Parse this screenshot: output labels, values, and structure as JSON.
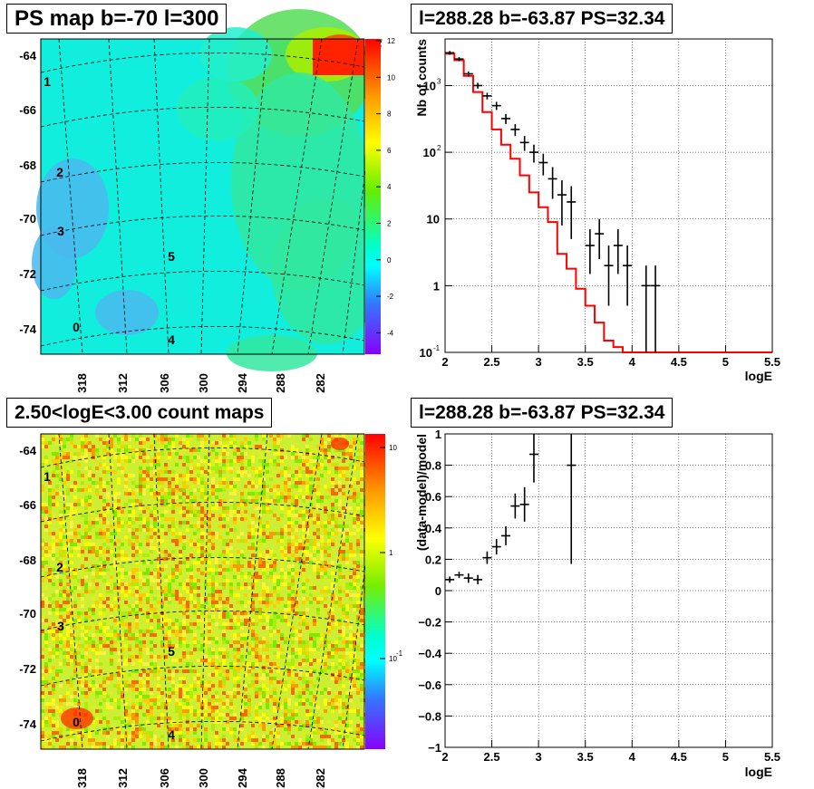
{
  "panels": {
    "tl_title": "PS map b=-70 l=300",
    "tr_title": "l=288.28 b=-63.87 PS=32.34",
    "bl_title": "2.50<logE<3.00 count maps",
    "br_title": "l=288.28 b=-63.87 PS=32.34"
  },
  "maps": {
    "lat_labels": [
      "-64",
      "-66",
      "-68",
      "-70",
      "-72",
      "-74"
    ],
    "lon_labels": [
      "318",
      "312",
      "306",
      "300",
      "294",
      "288",
      "282"
    ],
    "source_labels": [
      "1",
      "2",
      "3",
      "5",
      "0",
      "4"
    ],
    "ps_colorbar_ticks": [
      "12",
      "10",
      "8",
      "6",
      "4",
      "2",
      "0",
      "-2",
      "-4"
    ],
    "count_colorbar_ticks": [
      "10",
      "1",
      "10"
    ],
    "count_colorbar_exp": [
      "-1"
    ]
  },
  "chart_data": [
    {
      "type": "line",
      "title": "l=288.28 b=-63.87 PS=32.34",
      "xlabel": "logE",
      "ylabel": "Nb of counts",
      "xlim": [
        2,
        5.5
      ],
      "ylim": [
        0.1,
        5000
      ],
      "yscale": "log",
      "grid": true,
      "x_ticks": [
        "2",
        "2.5",
        "3",
        "3.5",
        "4",
        "4.5",
        "5",
        "5.5"
      ],
      "y_ticks": [
        "10",
        "1",
        "10",
        "10",
        "10",
        "1",
        "10"
      ],
      "y_tick_exp": [
        "3",
        "2",
        "-1"
      ],
      "series": [
        {
          "kind": "model-step",
          "color": "#ff0000",
          "edges": [
            2.0,
            2.1,
            2.2,
            2.3,
            2.4,
            2.5,
            2.6,
            2.7,
            2.8,
            2.9,
            3.0,
            3.1,
            3.2,
            3.3,
            3.4,
            3.5,
            3.6,
            3.7,
            3.8,
            3.9,
            4.0,
            4.1
          ],
          "values": [
            3000,
            2400,
            1400,
            800,
            400,
            220,
            130,
            80,
            45,
            25,
            15,
            9,
            3,
            1.8,
            0.9,
            0.5,
            0.28,
            0.15,
            0.12,
            0.1,
            0.1
          ]
        },
        {
          "kind": "data",
          "color": "#000000",
          "x": [
            2.05,
            2.15,
            2.25,
            2.35,
            2.45,
            2.55,
            2.65,
            2.75,
            2.85,
            2.95,
            3.05,
            3.15,
            3.25,
            3.35,
            3.55,
            3.65,
            3.75,
            3.85,
            3.95,
            4.15,
            4.25
          ],
          "y": [
            3100,
            2500,
            1500,
            1000,
            700,
            500,
            320,
            220,
            140,
            100,
            70,
            40,
            23,
            18,
            4,
            6,
            2,
            4,
            2,
            1,
            1
          ],
          "err_lo": [
            200,
            180,
            130,
            100,
            80,
            70,
            55,
            45,
            35,
            30,
            25,
            20,
            15,
            13,
            2.5,
            3.5,
            1.5,
            2.5,
            1.5,
            0.9,
            0.9
          ],
          "err_hi": [
            200,
            180,
            130,
            100,
            80,
            70,
            55,
            45,
            35,
            30,
            25,
            20,
            15,
            13,
            3,
            4,
            2,
            3,
            2,
            1,
            1
          ]
        }
      ]
    },
    {
      "type": "scatter",
      "title": "l=288.28 b=-63.87 PS=32.34",
      "xlabel": "logE",
      "ylabel": "(data-model)/model",
      "xlim": [
        2,
        5.5
      ],
      "ylim": [
        -1,
        1
      ],
      "grid": true,
      "x_ticks": [
        "2",
        "2.5",
        "3",
        "3.5",
        "4",
        "4.5",
        "5",
        "5.5"
      ],
      "y_ticks": [
        "1",
        "0.8",
        "0.6",
        "0.4",
        "0.2",
        "0",
        "−0.2",
        "−0.4",
        "−0.6",
        "−0.8",
        "−1"
      ],
      "series": [
        {
          "kind": "data",
          "color": "#000000",
          "x": [
            2.05,
            2.15,
            2.25,
            2.35,
            2.45,
            2.55,
            2.65,
            2.75,
            2.85,
            2.95,
            3.35
          ],
          "y": [
            0.07,
            0.1,
            0.08,
            0.07,
            0.21,
            0.28,
            0.35,
            0.54,
            0.55,
            0.87,
            0.8
          ],
          "err": [
            0.02,
            0.02,
            0.03,
            0.03,
            0.04,
            0.05,
            0.06,
            0.08,
            0.11,
            0.18,
            0.63
          ]
        }
      ]
    }
  ]
}
